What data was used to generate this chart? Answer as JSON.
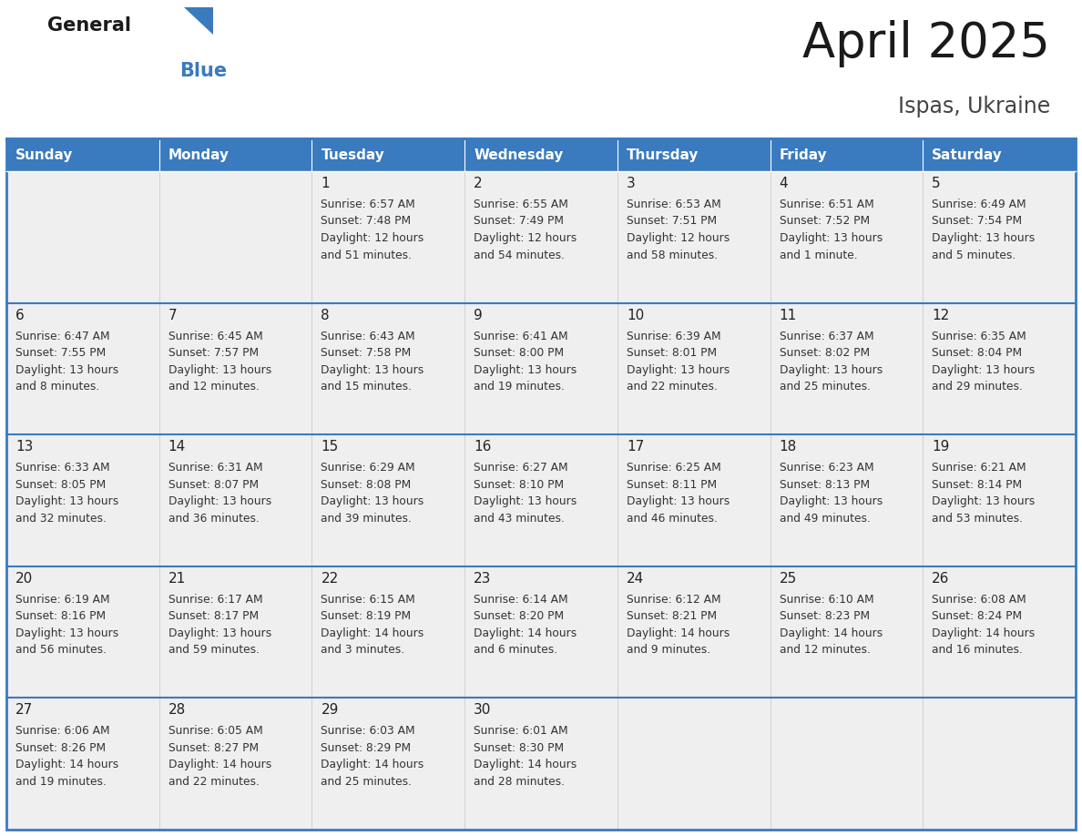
{
  "title": "April 2025",
  "subtitle": "Ispas, Ukraine",
  "header_color": "#3a7abf",
  "header_text_color": "#ffffff",
  "cell_bg_color": "#efefef",
  "text_color": "#333333",
  "border_color": "#3a7abf",
  "days_of_week": [
    "Sunday",
    "Monday",
    "Tuesday",
    "Wednesday",
    "Thursday",
    "Friday",
    "Saturday"
  ],
  "weeks": [
    [
      {
        "day": "",
        "sunrise": "",
        "sunset": "",
        "daylight": ""
      },
      {
        "day": "",
        "sunrise": "",
        "sunset": "",
        "daylight": ""
      },
      {
        "day": "1",
        "sunrise": "Sunrise: 6:57 AM",
        "sunset": "Sunset: 7:48 PM",
        "daylight": "Daylight: 12 hours\nand 51 minutes."
      },
      {
        "day": "2",
        "sunrise": "Sunrise: 6:55 AM",
        "sunset": "Sunset: 7:49 PM",
        "daylight": "Daylight: 12 hours\nand 54 minutes."
      },
      {
        "day": "3",
        "sunrise": "Sunrise: 6:53 AM",
        "sunset": "Sunset: 7:51 PM",
        "daylight": "Daylight: 12 hours\nand 58 minutes."
      },
      {
        "day": "4",
        "sunrise": "Sunrise: 6:51 AM",
        "sunset": "Sunset: 7:52 PM",
        "daylight": "Daylight: 13 hours\nand 1 minute."
      },
      {
        "day": "5",
        "sunrise": "Sunrise: 6:49 AM",
        "sunset": "Sunset: 7:54 PM",
        "daylight": "Daylight: 13 hours\nand 5 minutes."
      }
    ],
    [
      {
        "day": "6",
        "sunrise": "Sunrise: 6:47 AM",
        "sunset": "Sunset: 7:55 PM",
        "daylight": "Daylight: 13 hours\nand 8 minutes."
      },
      {
        "day": "7",
        "sunrise": "Sunrise: 6:45 AM",
        "sunset": "Sunset: 7:57 PM",
        "daylight": "Daylight: 13 hours\nand 12 minutes."
      },
      {
        "day": "8",
        "sunrise": "Sunrise: 6:43 AM",
        "sunset": "Sunset: 7:58 PM",
        "daylight": "Daylight: 13 hours\nand 15 minutes."
      },
      {
        "day": "9",
        "sunrise": "Sunrise: 6:41 AM",
        "sunset": "Sunset: 8:00 PM",
        "daylight": "Daylight: 13 hours\nand 19 minutes."
      },
      {
        "day": "10",
        "sunrise": "Sunrise: 6:39 AM",
        "sunset": "Sunset: 8:01 PM",
        "daylight": "Daylight: 13 hours\nand 22 minutes."
      },
      {
        "day": "11",
        "sunrise": "Sunrise: 6:37 AM",
        "sunset": "Sunset: 8:02 PM",
        "daylight": "Daylight: 13 hours\nand 25 minutes."
      },
      {
        "day": "12",
        "sunrise": "Sunrise: 6:35 AM",
        "sunset": "Sunset: 8:04 PM",
        "daylight": "Daylight: 13 hours\nand 29 minutes."
      }
    ],
    [
      {
        "day": "13",
        "sunrise": "Sunrise: 6:33 AM",
        "sunset": "Sunset: 8:05 PM",
        "daylight": "Daylight: 13 hours\nand 32 minutes."
      },
      {
        "day": "14",
        "sunrise": "Sunrise: 6:31 AM",
        "sunset": "Sunset: 8:07 PM",
        "daylight": "Daylight: 13 hours\nand 36 minutes."
      },
      {
        "day": "15",
        "sunrise": "Sunrise: 6:29 AM",
        "sunset": "Sunset: 8:08 PM",
        "daylight": "Daylight: 13 hours\nand 39 minutes."
      },
      {
        "day": "16",
        "sunrise": "Sunrise: 6:27 AM",
        "sunset": "Sunset: 8:10 PM",
        "daylight": "Daylight: 13 hours\nand 43 minutes."
      },
      {
        "day": "17",
        "sunrise": "Sunrise: 6:25 AM",
        "sunset": "Sunset: 8:11 PM",
        "daylight": "Daylight: 13 hours\nand 46 minutes."
      },
      {
        "day": "18",
        "sunrise": "Sunrise: 6:23 AM",
        "sunset": "Sunset: 8:13 PM",
        "daylight": "Daylight: 13 hours\nand 49 minutes."
      },
      {
        "day": "19",
        "sunrise": "Sunrise: 6:21 AM",
        "sunset": "Sunset: 8:14 PM",
        "daylight": "Daylight: 13 hours\nand 53 minutes."
      }
    ],
    [
      {
        "day": "20",
        "sunrise": "Sunrise: 6:19 AM",
        "sunset": "Sunset: 8:16 PM",
        "daylight": "Daylight: 13 hours\nand 56 minutes."
      },
      {
        "day": "21",
        "sunrise": "Sunrise: 6:17 AM",
        "sunset": "Sunset: 8:17 PM",
        "daylight": "Daylight: 13 hours\nand 59 minutes."
      },
      {
        "day": "22",
        "sunrise": "Sunrise: 6:15 AM",
        "sunset": "Sunset: 8:19 PM",
        "daylight": "Daylight: 14 hours\nand 3 minutes."
      },
      {
        "day": "23",
        "sunrise": "Sunrise: 6:14 AM",
        "sunset": "Sunset: 8:20 PM",
        "daylight": "Daylight: 14 hours\nand 6 minutes."
      },
      {
        "day": "24",
        "sunrise": "Sunrise: 6:12 AM",
        "sunset": "Sunset: 8:21 PM",
        "daylight": "Daylight: 14 hours\nand 9 minutes."
      },
      {
        "day": "25",
        "sunrise": "Sunrise: 6:10 AM",
        "sunset": "Sunset: 8:23 PM",
        "daylight": "Daylight: 14 hours\nand 12 minutes."
      },
      {
        "day": "26",
        "sunrise": "Sunrise: 6:08 AM",
        "sunset": "Sunset: 8:24 PM",
        "daylight": "Daylight: 14 hours\nand 16 minutes."
      }
    ],
    [
      {
        "day": "27",
        "sunrise": "Sunrise: 6:06 AM",
        "sunset": "Sunset: 8:26 PM",
        "daylight": "Daylight: 14 hours\nand 19 minutes."
      },
      {
        "day": "28",
        "sunrise": "Sunrise: 6:05 AM",
        "sunset": "Sunset: 8:27 PM",
        "daylight": "Daylight: 14 hours\nand 22 minutes."
      },
      {
        "day": "29",
        "sunrise": "Sunrise: 6:03 AM",
        "sunset": "Sunset: 8:29 PM",
        "daylight": "Daylight: 14 hours\nand 25 minutes."
      },
      {
        "day": "30",
        "sunrise": "Sunrise: 6:01 AM",
        "sunset": "Sunset: 8:30 PM",
        "daylight": "Daylight: 14 hours\nand 28 minutes."
      },
      {
        "day": "",
        "sunrise": "",
        "sunset": "",
        "daylight": ""
      },
      {
        "day": "",
        "sunrise": "",
        "sunset": "",
        "daylight": ""
      },
      {
        "day": "",
        "sunrise": "",
        "sunset": "",
        "daylight": ""
      }
    ]
  ]
}
